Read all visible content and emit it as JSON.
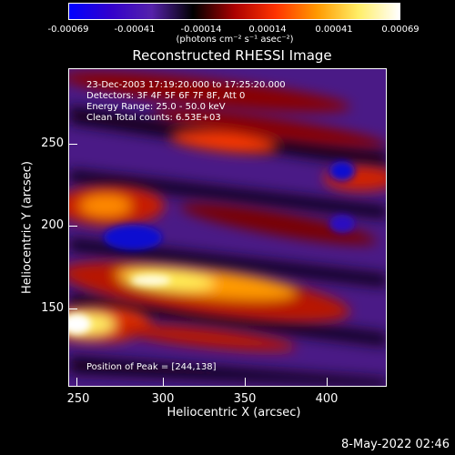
{
  "colorbar": {
    "ticks": [
      "-0.00069",
      "-0.00041",
      "-0.00014",
      "0.00014",
      "0.00041",
      "0.00069"
    ],
    "unit_label": "(photons cm⁻² s⁻¹ asec⁻²)"
  },
  "plot": {
    "title": "Reconstructed RHESSI Image",
    "info": {
      "time_range": "23-Dec-2003 17:19:20.000 to 17:25:20.000",
      "detectors": "Detectors: 3F 4F 5F 6F 7F 8F, Att 0",
      "energy": "Energy Range: 25.0 - 50.0 keV",
      "clean": "Clean    Total counts: 6.53E+03"
    },
    "peak": "Position of Peak = [244,138]",
    "x_axis": {
      "label": "Heliocentric X (arcsec)",
      "ticks": [
        "250",
        "300",
        "350",
        "400"
      ]
    },
    "y_axis": {
      "label": "Heliocentric Y (arcsec)",
      "ticks": [
        "250",
        "200",
        "150"
      ]
    }
  },
  "footer": {
    "timestamp": "8-May-2022 02:46"
  },
  "colors": {
    "colormap": [
      "#0000ff",
      "#3300cc",
      "#5522aa",
      "#000000",
      "#aa0000",
      "#ff3300",
      "#ff9900",
      "#ffee66",
      "#ffffff"
    ]
  }
}
